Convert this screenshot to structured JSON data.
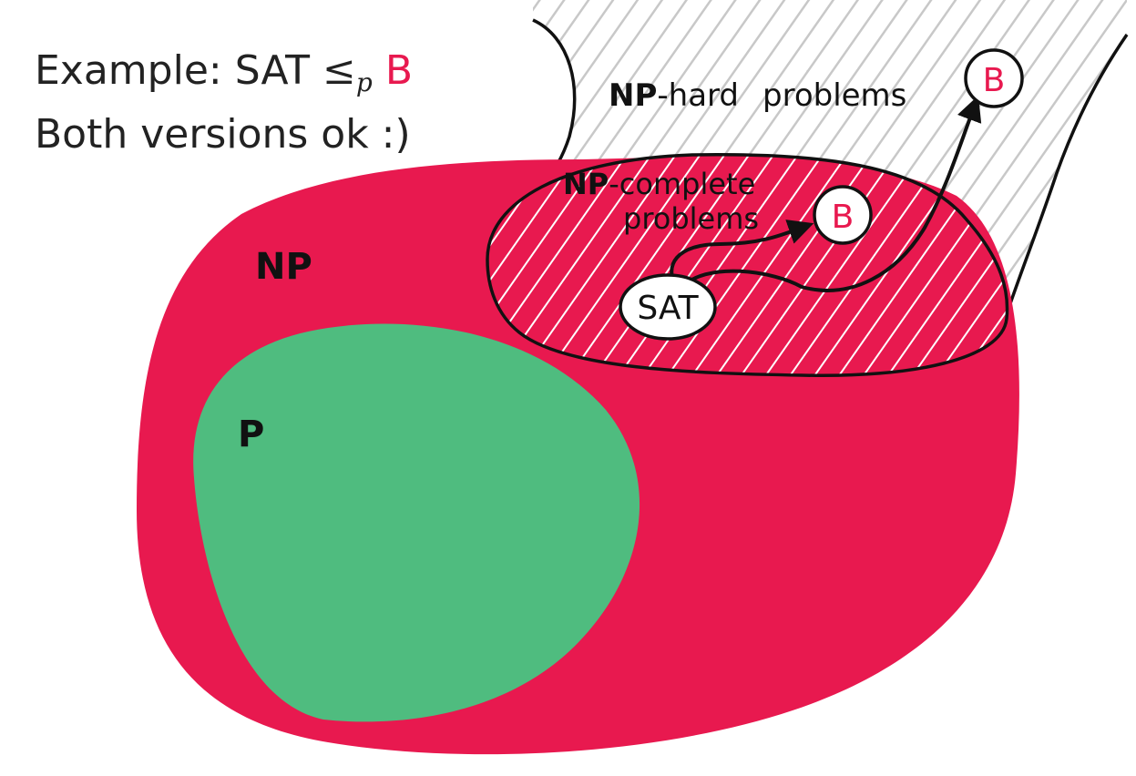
{
  "caption": {
    "line1": {
      "prefix": "Example: SAT ",
      "relation": "≤",
      "subscript": "p",
      "target": "B"
    },
    "line2": "Both versions ok :)"
  },
  "diagram": {
    "np_label": "NP",
    "p_label": "P",
    "np_hard": {
      "bold": "NP",
      "rest": "-hard",
      "word": "problems"
    },
    "np_complete": {
      "bold": "NP",
      "rest": "-complete",
      "word": "problems"
    },
    "nodes": {
      "sat": "SAT",
      "b_complete": "B",
      "b_hard": "B"
    }
  },
  "colors": {
    "np_region": "#e8194f",
    "p_region": "#4fbc7f",
    "hatch_light": "#c8c8c8",
    "hatch_on_pink": "#ffffff",
    "ink": "#111111",
    "b_label": "#e8194f"
  }
}
